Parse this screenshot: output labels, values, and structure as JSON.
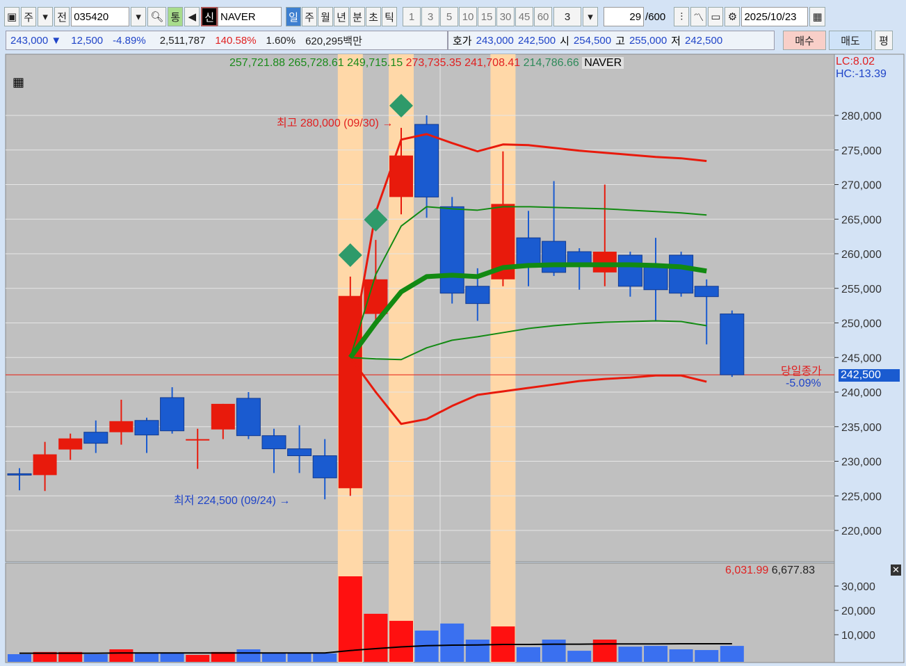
{
  "toolbar": {
    "code": "035420",
    "name": "NAVER",
    "market_label": "주",
    "all_label": "전",
    "total_label": "통",
    "new_label": "신",
    "periods": [
      "일",
      "주",
      "월",
      "년",
      "분",
      "초",
      "틱"
    ],
    "selected_period": "일",
    "intervals": [
      "1",
      "3",
      "5",
      "10",
      "15",
      "30",
      "45",
      "60"
    ],
    "interval_value": "3",
    "count": "29",
    "count_max": "/600",
    "date": "2025/10/23"
  },
  "quote": {
    "price": "243,000",
    "arrow": "▼",
    "change": "12,500",
    "change_pct": "-4.89%",
    "volume": "2,511,787",
    "volume_ratio": "140.58%",
    "turnover": "1.60%",
    "amount": "620,295백만",
    "bid_label": "호가",
    "ask": "243,000",
    "bid": "242,500",
    "open_label": "시",
    "open": "254,500",
    "high_label": "고",
    "high": "255,000",
    "low_label": "저",
    "low": "242,500",
    "buy_label": "매수",
    "sell_label": "매도",
    "avg_label": "평"
  },
  "legend": {
    "g1": "257,721.88",
    "g2": "265,728.61",
    "g3": "249,715.15",
    "r1": "273,735.35",
    "r2": "241,708.41",
    "g4": "214,786.66",
    "name": "NAVER",
    "lc": "LC:8.02",
    "hc": "HC:-13.39"
  },
  "annotations": {
    "high": "최고 280,000 (09/30)",
    "low": "최저 224,500 (09/24)",
    "close_label": "당일종가",
    "close_value": "242,500",
    "close_pct": "-5.09%"
  },
  "volume_legend": {
    "v1": "6,031.99",
    "v2": "6,677.83"
  },
  "colors": {
    "up": "#e81a0c",
    "down": "#1a5bd0",
    "highlight": "#ffd8a8",
    "ma": "#128a12",
    "envelope": "#e81a0c",
    "marker": "#2e9a6a"
  },
  "chart_data": {
    "type": "candlestick",
    "ylim": [
      217500,
      285000
    ],
    "y_ticks": [
      220000,
      225000,
      230000,
      235000,
      240000,
      245000,
      250000,
      255000,
      260000,
      265000,
      270000,
      275000,
      280000
    ],
    "y_tick_labels": [
      "220,000",
      "225,000",
      "230,000",
      "235,000",
      "240,000",
      "245,000",
      "250,000",
      "255,000",
      "260,000",
      "265,000",
      "270,000",
      "275,000",
      "280,000"
    ],
    "candles": [
      [
        228200,
        229000,
        225800,
        228000
      ],
      [
        228000,
        232800,
        225700,
        231000
      ],
      [
        231700,
        234000,
        230200,
        233300
      ],
      [
        234200,
        235900,
        231200,
        232600
      ],
      [
        234200,
        238900,
        232400,
        235800
      ],
      [
        235900,
        236300,
        231200,
        233800
      ],
      [
        239200,
        240700,
        234000,
        234400
      ],
      [
        233200,
        234700,
        228900,
        233200
      ],
      [
        234600,
        238300,
        233200,
        238300
      ],
      [
        239100,
        240000,
        233200,
        233700
      ],
      [
        233700,
        234700,
        228300,
        231800
      ],
      [
        231800,
        235200,
        228300,
        230800
      ],
      [
        230800,
        233200,
        224500,
        227600
      ],
      [
        226100,
        256700,
        225000,
        253900
      ],
      [
        251300,
        262000,
        249900,
        256300
      ],
      [
        268200,
        278200,
        265700,
        274200
      ],
      [
        278700,
        280000,
        265200,
        268200
      ],
      [
        266800,
        268200,
        252800,
        254300
      ],
      [
        255300,
        257900,
        250300,
        252800
      ],
      [
        256300,
        274800,
        255300,
        267200
      ],
      [
        262300,
        266200,
        255300,
        258300
      ],
      [
        261800,
        270500,
        256800,
        257300
      ],
      [
        260300,
        260800,
        254800,
        258300
      ],
      [
        257300,
        270000,
        255300,
        260300
      ],
      [
        259800,
        260300,
        253800,
        255300
      ],
      [
        258300,
        262300,
        250300,
        254800
      ],
      [
        259800,
        260300,
        253800,
        254300
      ],
      [
        255300,
        256300,
        246900,
        253800
      ],
      [
        251300,
        251800,
        242200,
        242500
      ]
    ],
    "highlight_candles": [
      13,
      15,
      19
    ],
    "marker_candles": [
      13,
      14,
      15
    ],
    "ma_thick": {
      "from": 13,
      "values": [
        245000,
        250000,
        254500,
        256700,
        256900,
        256700,
        258000,
        258300,
        258400,
        258400,
        258400,
        258400,
        258300,
        258100,
        257500
      ]
    },
    "ma_upper": {
      "from": 13,
      "values": [
        245000,
        257000,
        264000,
        266800,
        266500,
        266300,
        266800,
        266800,
        266700,
        266600,
        266500,
        266300,
        266100,
        265900,
        265600
      ]
    },
    "ma_lower": {
      "from": 13,
      "values": [
        245000,
        244800,
        244700,
        246400,
        247500,
        248000,
        248600,
        249200,
        249600,
        249900,
        250100,
        250200,
        250300,
        250200,
        249600
      ]
    },
    "env_upper": {
      "from": 13,
      "values": [
        245000,
        266000,
        276500,
        277300,
        276000,
        274800,
        275800,
        275700,
        275300,
        274900,
        274600,
        274300,
        274000,
        273800,
        273400
      ]
    },
    "env_lower": {
      "from": 13,
      "values": [
        245000,
        240000,
        235400,
        236100,
        238000,
        239600,
        240100,
        240600,
        241100,
        241600,
        241900,
        242100,
        242400,
        242400,
        241500
      ]
    },
    "volume": {
      "ylim": [
        0,
        35000
      ],
      "y_ticks": [
        10000,
        20000,
        30000
      ],
      "y_tick_labels": [
        "10,000",
        "20,000",
        "30,000"
      ],
      "values": [
        2000,
        2900,
        2900,
        2000,
        4000,
        2300,
        2300,
        1700,
        2900,
        4000,
        2300,
        2300,
        2300,
        34000,
        18600,
        15700,
        11700,
        14600,
        8000,
        13400,
        4900,
        8000,
        3400,
        8000,
        5100,
        5400,
        4000,
        3700,
        5400
      ],
      "ma": [
        2400,
        2400,
        2400,
        2400,
        2500,
        2500,
        2500,
        2500,
        2500,
        2500,
        2500,
        2500,
        2500,
        3500,
        4300,
        5000,
        5500,
        5700,
        5800,
        6000,
        6000,
        6100,
        6100,
        6200,
        6200,
        6200,
        6300,
        6300,
        6300
      ]
    }
  }
}
